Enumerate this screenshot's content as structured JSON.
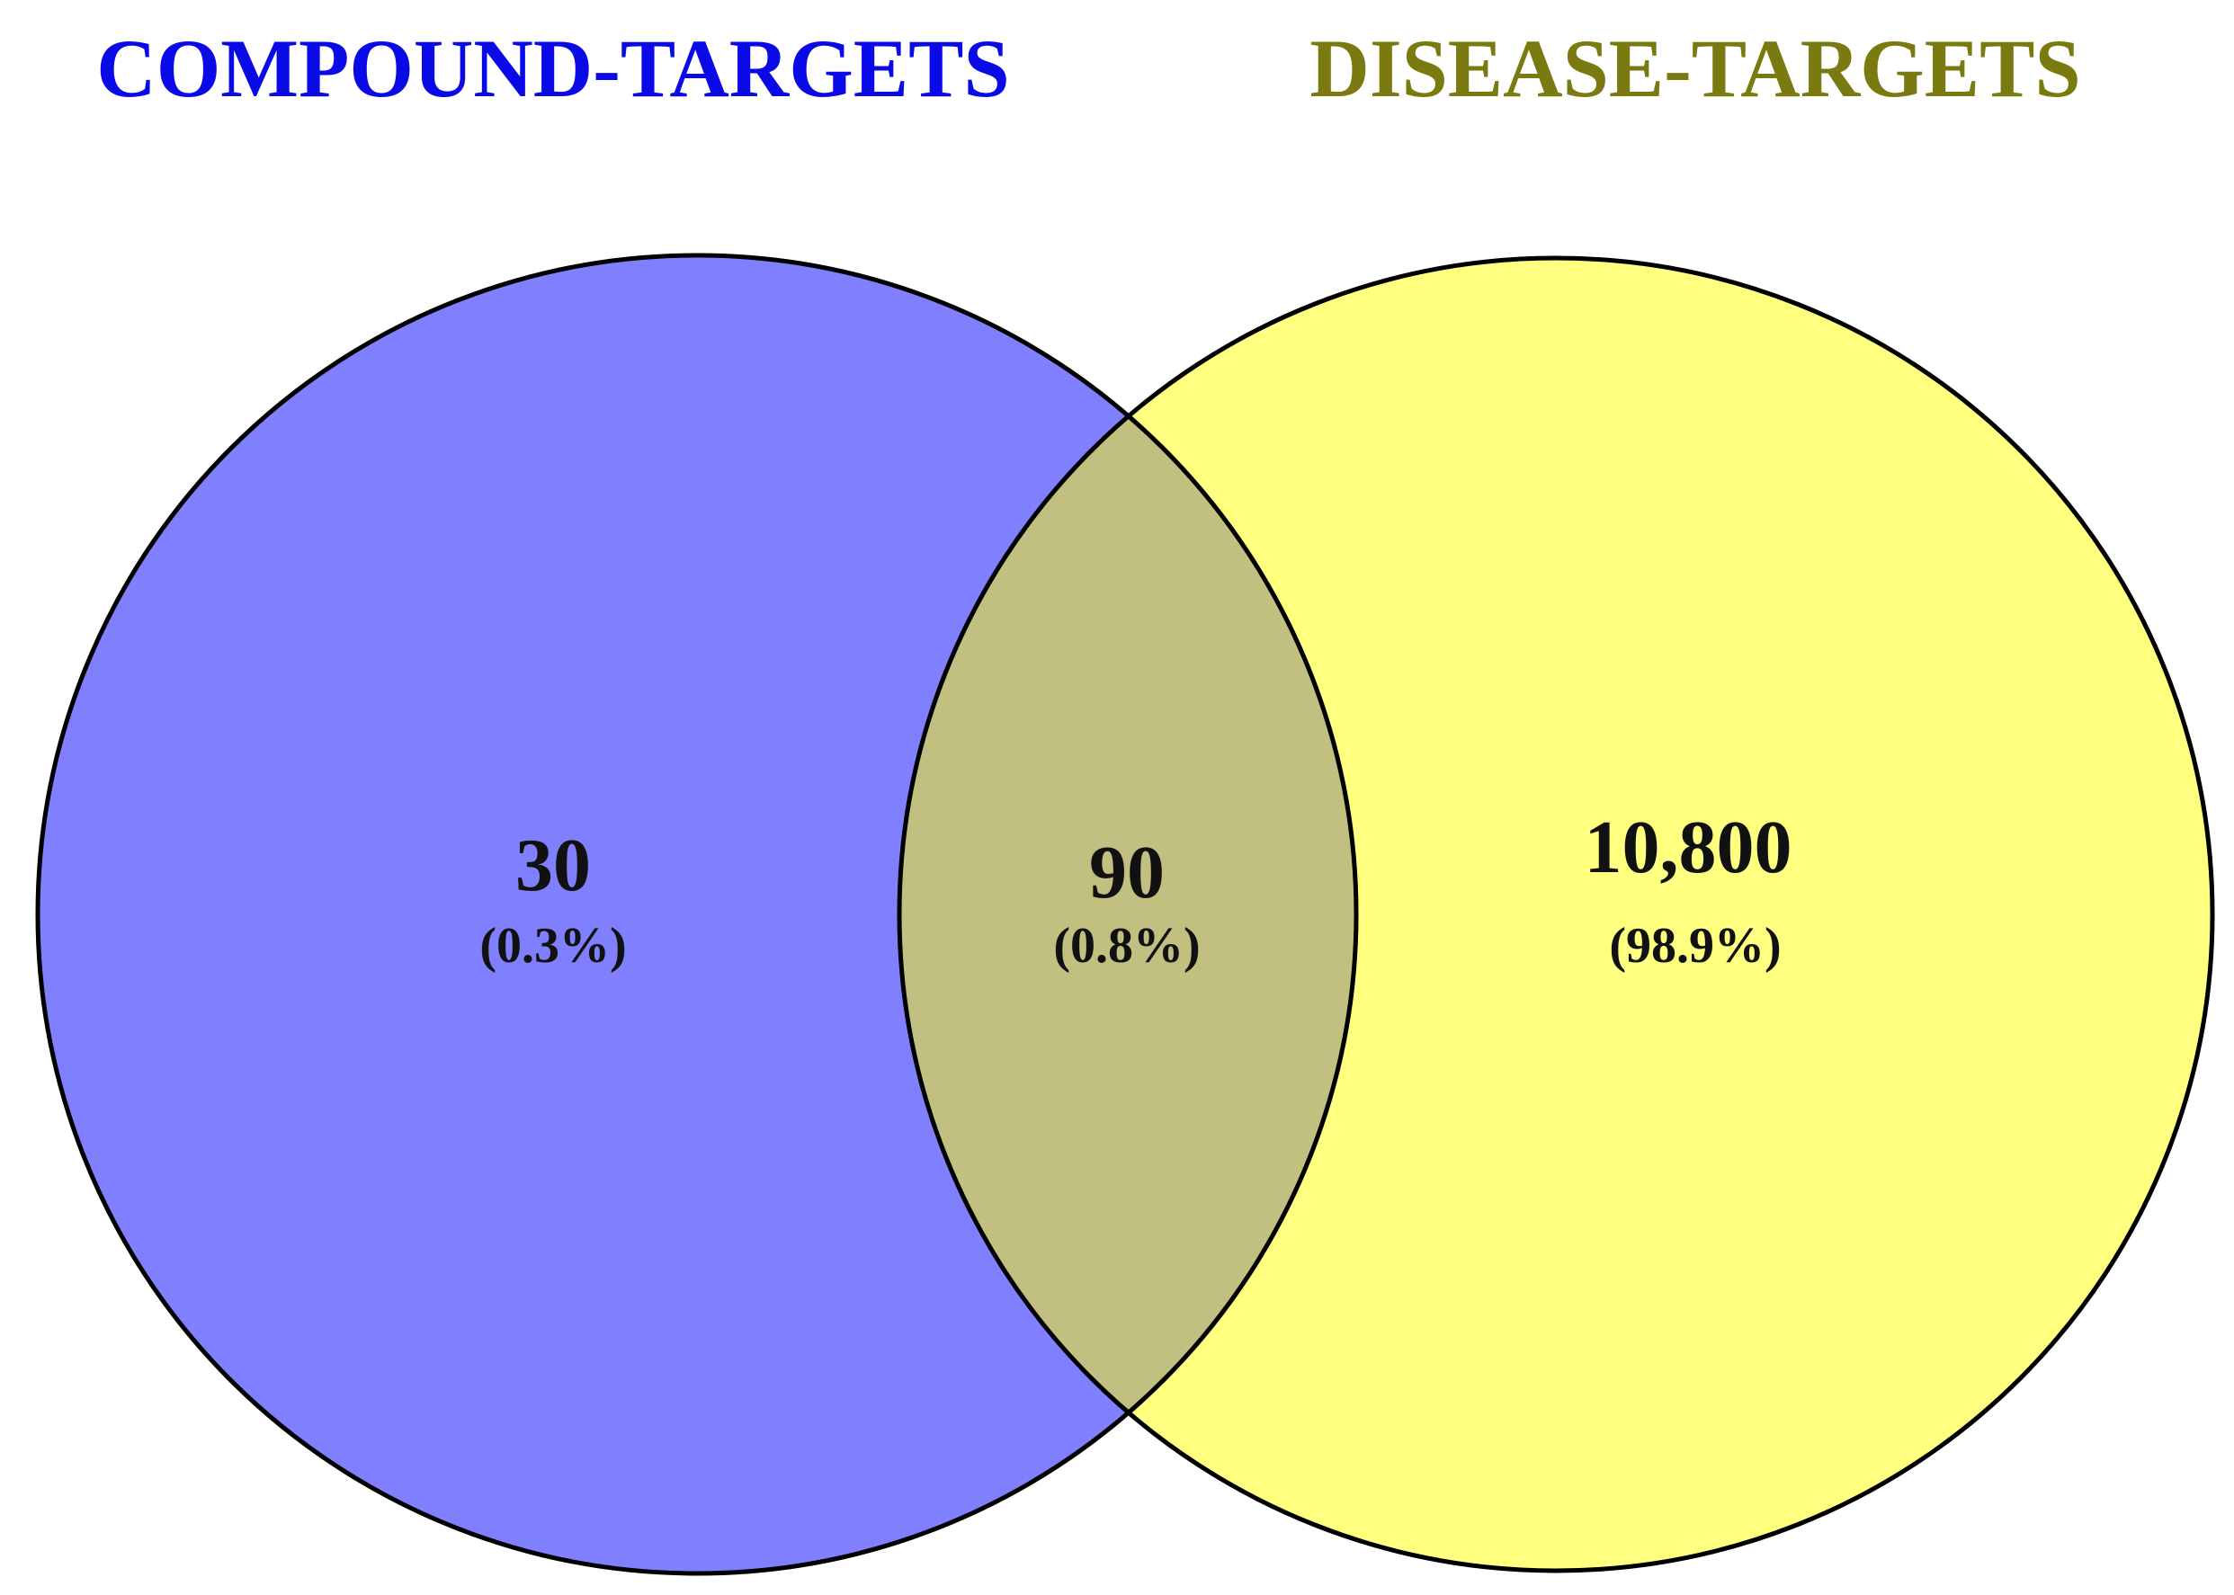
{
  "sets": [
    {
      "label": "COMPOUND-TARGETS",
      "color": "#8080ff",
      "title_color": "#0a0ae6"
    },
    {
      "label": "DISEASE-TARGETS",
      "color": "#ffff80",
      "title_color": "#7a7a10"
    }
  ],
  "regions": {
    "compound_only": {
      "count": "30",
      "percent": "(0.3%)"
    },
    "overlap": {
      "count": "90",
      "percent": "(0.8%)",
      "color": "#c2c080"
    },
    "disease_only": {
      "count": "10,800",
      "percent": "(98.9%)"
    }
  },
  "outline_color": "#000000"
}
